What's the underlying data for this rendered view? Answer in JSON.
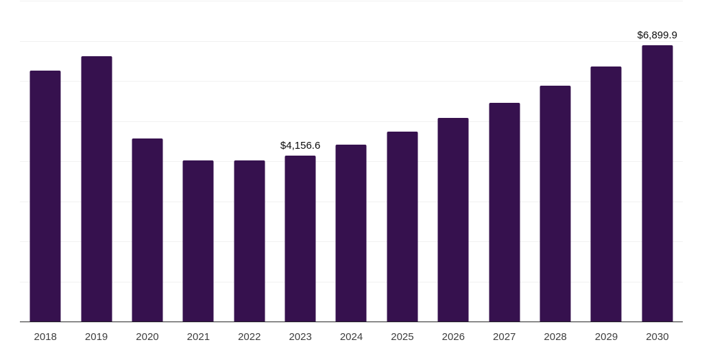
{
  "chart_data": {
    "type": "bar",
    "title": "",
    "xlabel": "",
    "ylabel": "",
    "categories": [
      "2018",
      "2019",
      "2020",
      "2021",
      "2022",
      "2023",
      "2024",
      "2025",
      "2026",
      "2027",
      "2028",
      "2029",
      "2030"
    ],
    "values": [
      6270,
      6630,
      4590,
      4030,
      4030,
      4156.6,
      4430,
      4750,
      5090,
      5470,
      5900,
      6380,
      6899.9
    ],
    "data_labels": [
      null,
      null,
      null,
      null,
      null,
      "$4,156.6",
      null,
      null,
      null,
      null,
      null,
      null,
      "$6,899.9"
    ],
    "ylim": [
      0,
      8000
    ],
    "gridline_step": 1000,
    "grid": "horizontal-only",
    "legend": "none",
    "y_axis_tick_labels": "none"
  },
  "colors": {
    "bar_fill": "#36114E",
    "gridline": "#F1F1F1",
    "axis_line": "#262626",
    "tick_label": "#3D3D3D",
    "data_label": "#0A0A0A",
    "background": "#FFFFFF"
  }
}
